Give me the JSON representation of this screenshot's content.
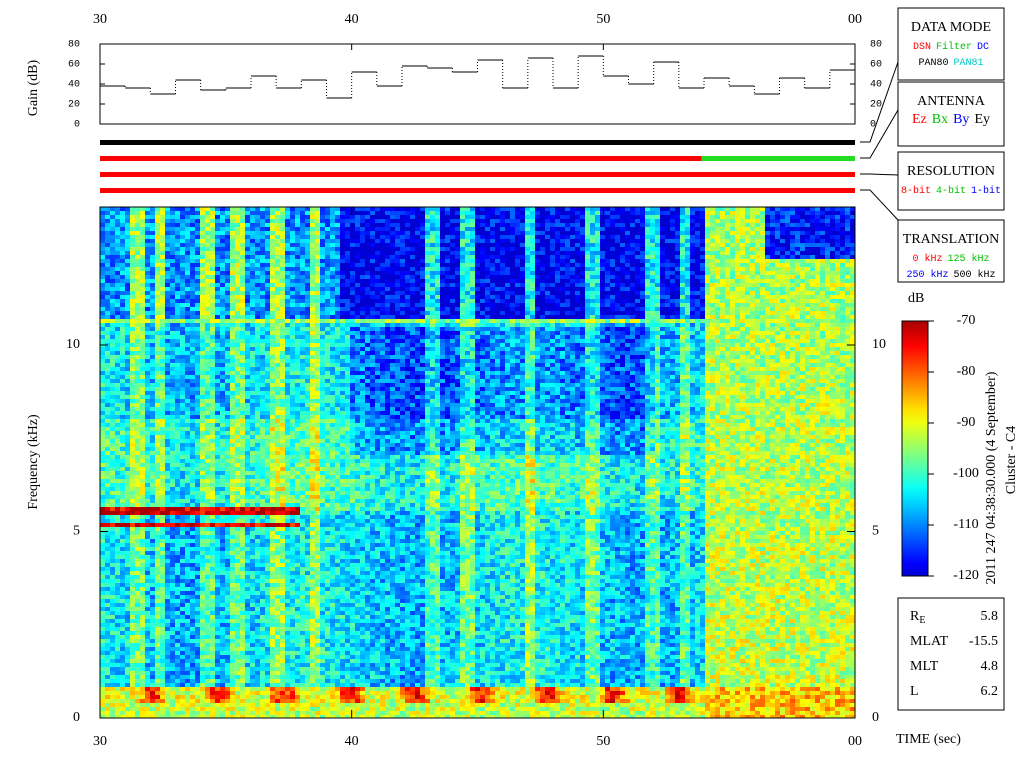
{
  "chart_data": {
    "type": "spectrogram",
    "xlabel": "TIME (sec)",
    "ylabel": "Frequency (kHz)",
    "xlim": [
      30,
      60
    ],
    "xticks": [
      30,
      40,
      50,
      {
        "value": 60,
        "label": "00"
      }
    ],
    "ylim": [
      0,
      13.7
    ],
    "yticks": [
      0,
      5,
      10
    ],
    "gain": {
      "ylabel": "Gain (dB)",
      "ylim": [
        0,
        80
      ],
      "yticks": [
        0,
        20,
        40,
        60,
        80
      ],
      "color": "#000000",
      "x": [
        30,
        31,
        32,
        33,
        34,
        35,
        36,
        37,
        38,
        39,
        40,
        41,
        42,
        43,
        44,
        45,
        46,
        47,
        48,
        49,
        50,
        51,
        52,
        53,
        54,
        55,
        56,
        57,
        58,
        59,
        60
      ],
      "values": [
        38,
        36,
        30,
        44,
        34,
        36,
        48,
        36,
        44,
        26,
        52,
        38,
        58,
        56,
        52,
        64,
        36,
        66,
        36,
        68,
        48,
        40,
        62,
        36,
        46,
        38,
        30,
        46,
        36,
        54,
        54
      ]
    },
    "status_bars": [
      [
        {
          "from": 30,
          "to": 60,
          "color": "#000000"
        }
      ],
      [
        {
          "from": 30,
          "to": 53.9,
          "color": "#ff0000"
        },
        {
          "from": 53.9,
          "to": 60,
          "color": "#22dd22"
        }
      ],
      [
        {
          "from": 30,
          "to": 60,
          "color": "#ff0000"
        }
      ],
      [
        {
          "from": 30,
          "to": 60,
          "color": "#ff0000"
        }
      ]
    ],
    "legends": [
      {
        "title": "DATA MODE",
        "rows": [
          [
            {
              "text": "DSN",
              "color": "#ff0000"
            },
            {
              "text": "Filter",
              "color": "#00c000"
            },
            {
              "text": "DC",
              "color": "#0000ff"
            }
          ],
          [
            {
              "text": "PAN80",
              "color": "#000000"
            },
            {
              "text": "PAN81",
              "color": "#00c8c8"
            }
          ]
        ]
      },
      {
        "title": "ANTENNA",
        "rows": [
          [
            {
              "text": "Ez",
              "color": "#ff0000"
            },
            {
              "text": "Bx",
              "color": "#00c000"
            },
            {
              "text": "By",
              "color": "#0000ff"
            },
            {
              "text": "Ey",
              "color": "#000000"
            }
          ]
        ]
      },
      {
        "title": "RESOLUTION",
        "rows": [
          [
            {
              "text": "8-bit",
              "color": "#ff0000"
            },
            {
              "text": "4-bit",
              "color": "#00c000"
            },
            {
              "text": "1-bit",
              "color": "#0000ff"
            }
          ]
        ]
      },
      {
        "title": "TRANSLATION",
        "rows": [
          [
            {
              "text": "0 kHz",
              "color": "#ff0000"
            },
            {
              "text": "125 kHz",
              "color": "#00c000"
            }
          ],
          [
            {
              "text": "250 kHz",
              "color": "#0000ff"
            },
            {
              "text": "500 kHz",
              "color": "#000000"
            }
          ]
        ]
      }
    ],
    "colorbar": {
      "label": "dB",
      "clim": [
        -120,
        -70
      ],
      "ticks": [
        -70,
        -80,
        -90,
        -100,
        -110,
        -120
      ]
    },
    "side_title": "2011 247 04:38:30.000 (4 September)",
    "side_subtitle": "Cluster - C4",
    "info": [
      {
        "label": "R",
        "sub": "E",
        "value": 5.8
      },
      {
        "label": "MLAT",
        "value": -15.5
      },
      {
        "label": "MLT",
        "value": 4.8
      },
      {
        "label": "L",
        "value": 6.2
      }
    ]
  }
}
